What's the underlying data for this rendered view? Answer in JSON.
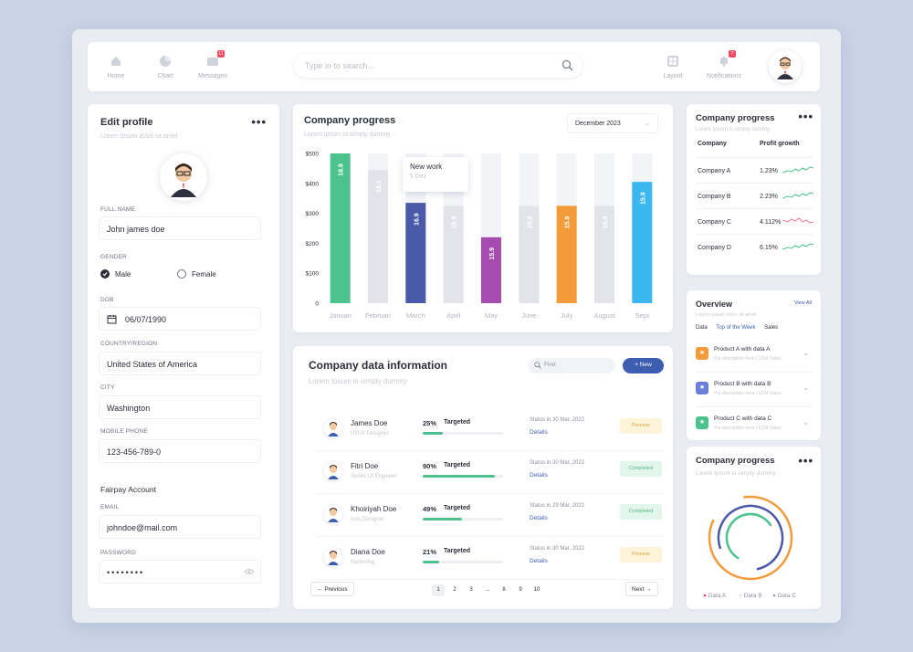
{
  "topbar": {
    "nav": [
      {
        "label": "Home",
        "icon": "home-icon"
      },
      {
        "label": "Chart",
        "icon": "pie-chart-icon"
      },
      {
        "label": "Messages",
        "icon": "mail-icon",
        "badge": "11"
      }
    ],
    "search_placeholder": "Type in to search...",
    "right_nav": [
      {
        "label": "Layout",
        "icon": "layout-icon"
      },
      {
        "label": "Notifications",
        "icon": "bell-icon",
        "badge": "7"
      }
    ]
  },
  "profile": {
    "title": "Edit profile",
    "subtitle": "Lorem ipsum dolor sit amet",
    "full_name_label": "FULL NAME",
    "full_name": "John james doe",
    "gender_label": "GENDER",
    "gender_male": "Male",
    "gender_female": "Female",
    "dob_label": "DOB",
    "dob": "06/07/1990",
    "country_label": "COUNTRY/REGION",
    "country": "United States of America",
    "city_label": "CITY",
    "city": "Washington",
    "phone_label": "MOBILE PHONE",
    "phone": "123-456-789-0",
    "account_title": "Fairpay Account",
    "email_label": "EMAIL",
    "email": "johndoe@mail.com",
    "password_label": "PASSWORD",
    "password": "••••••••"
  },
  "progress_chart": {
    "title": "Company progress",
    "subtitle": "Lorem Ipsum is simply dummy",
    "period": "December 2023",
    "tooltip_title": "New work",
    "tooltip_sub": "5 Dec"
  },
  "chart_data": {
    "type": "bar",
    "categories": [
      "Januari",
      "Februari",
      "March",
      "April",
      "May",
      "June",
      "July",
      "August",
      "Sept"
    ],
    "values": [
      500,
      445,
      335,
      325,
      220,
      325,
      325,
      325,
      405
    ],
    "background_max": 500,
    "data_labels": [
      "18.9",
      "18.1",
      "16.9",
      "15.9",
      "15.9",
      "15.9",
      "15.9",
      "15.9",
      "15.9"
    ],
    "colors": [
      "#4cc28c",
      "#e2e4ea",
      "#4b5aa8",
      "#e2e4ea",
      "#a64bb0",
      "#e2e4ea",
      "#f39a3b",
      "#e2e4ea",
      "#3cb6ef"
    ],
    "yticks": [
      "0",
      "$100",
      "$200",
      "$300",
      "$400",
      "$500"
    ],
    "ylim": [
      0,
      500
    ]
  },
  "info": {
    "title": "Company data information",
    "subtitle": "Lorem Ipsum is simply dummy",
    "find_placeholder": "Find",
    "new_label": "New",
    "rows": [
      {
        "name": "James Doe",
        "role": "UI/UX Designer",
        "pct": "25%",
        "fill": 0.25,
        "target": "Targeted",
        "status": "Status in 30 Mar, 2022",
        "details": "Details",
        "pill": "Process",
        "pill_type": "process"
      },
      {
        "name": "Fitri Doe",
        "role": "Senior UI Engineer",
        "pct": "90%",
        "fill": 0.9,
        "target": "Targeted",
        "status": "Status in 30 Mar, 2022",
        "details": "Details",
        "pill": "Completed",
        "pill_type": "done"
      },
      {
        "name": "Khoiriyah Doe",
        "role": "Icon Designer",
        "pct": "49%",
        "fill": 0.49,
        "target": "Targeted",
        "status": "Status in 29 Mar, 2022",
        "details": "Details",
        "pill": "Completed",
        "pill_type": "done"
      },
      {
        "name": "Diana Doe",
        "role": "Marketing",
        "pct": "21%",
        "fill": 0.21,
        "target": "Targeted",
        "status": "Status in 30 Mar, 2022",
        "details": "Details",
        "pill": "Process",
        "pill_type": "process"
      }
    ],
    "prev_label": "Previous",
    "next_label": "Next",
    "pages": [
      "1",
      "2",
      "3",
      "...",
      "8",
      "9",
      "10"
    ]
  },
  "company_table": {
    "title": "Company progress",
    "subtitle": "Lorem Ipsum is simply dummy",
    "col_company": "Company",
    "col_growth": "Profit growth",
    "rows": [
      {
        "company": "Company A",
        "growth": "1.23%",
        "trend": "up"
      },
      {
        "company": "Company B",
        "growth": "2.23%",
        "trend": "up"
      },
      {
        "company": "Company C",
        "growth": "4.112%",
        "trend": "down"
      },
      {
        "company": "Company D",
        "growth": "6.15%",
        "trend": "up"
      }
    ]
  },
  "overview": {
    "title": "Overview",
    "subtitle": "Lorem ipsum dolor sit amet",
    "view_all": "View All",
    "tabs": [
      "Data",
      "Top of the Week",
      "Sales"
    ],
    "products": [
      {
        "title": "Product A with data A",
        "desc": "Put description here  |  1234 Sales",
        "color": "#f39a3b"
      },
      {
        "title": "Product B with data B",
        "desc": "Put description here  |  1234 Sales",
        "color": "#6b7fd8"
      },
      {
        "title": "Product C with data C",
        "desc": "Put description here  |  1234 Sales",
        "color": "#4cc28c"
      }
    ]
  },
  "radial": {
    "title": "Company progress",
    "subtitle": "Lorem Ipsum is simply dummy",
    "legend": [
      "Data A",
      "Data B",
      "Data C"
    ]
  }
}
